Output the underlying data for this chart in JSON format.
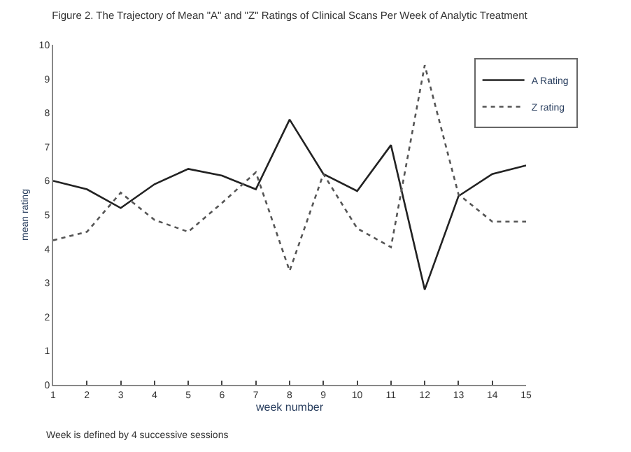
{
  "chart_data": {
    "type": "line",
    "title": "Figure 2. The Trajectory of Mean \"A\" and \"Z\" Ratings of Clinical Scans Per Week of Analytic Treatment",
    "xlabel": "week number",
    "ylabel": "mean rating",
    "x": [
      1,
      2,
      3,
      4,
      5,
      6,
      7,
      8,
      9,
      10,
      11,
      12,
      13,
      14,
      15
    ],
    "series": [
      {
        "name": "A Rating",
        "color": "#222222",
        "line_style": "solid",
        "values": [
          6.0,
          5.75,
          5.2,
          5.9,
          6.35,
          6.15,
          5.75,
          7.8,
          6.2,
          5.7,
          7.05,
          2.8,
          5.55,
          6.2,
          6.45
        ]
      },
      {
        "name": "Z rating",
        "color": "#555555",
        "line_style": "dotted",
        "values": [
          4.25,
          4.5,
          5.65,
          4.85,
          4.5,
          5.35,
          6.25,
          3.35,
          6.2,
          4.6,
          4.05,
          9.4,
          5.6,
          4.8,
          4.8
        ]
      }
    ],
    "xlim": [
      1,
      15
    ],
    "xticks": [
      1,
      2,
      3,
      4,
      5,
      6,
      7,
      8,
      9,
      10,
      11,
      12,
      13,
      14,
      15
    ],
    "ylim": [
      0,
      10
    ],
    "yticks": [
      0,
      1,
      2,
      3,
      4,
      5,
      6,
      7,
      8,
      9,
      10
    ],
    "legend": "top right",
    "marker": "none",
    "annotations": [
      "Week is defined by 4 successive sessions"
    ]
  }
}
